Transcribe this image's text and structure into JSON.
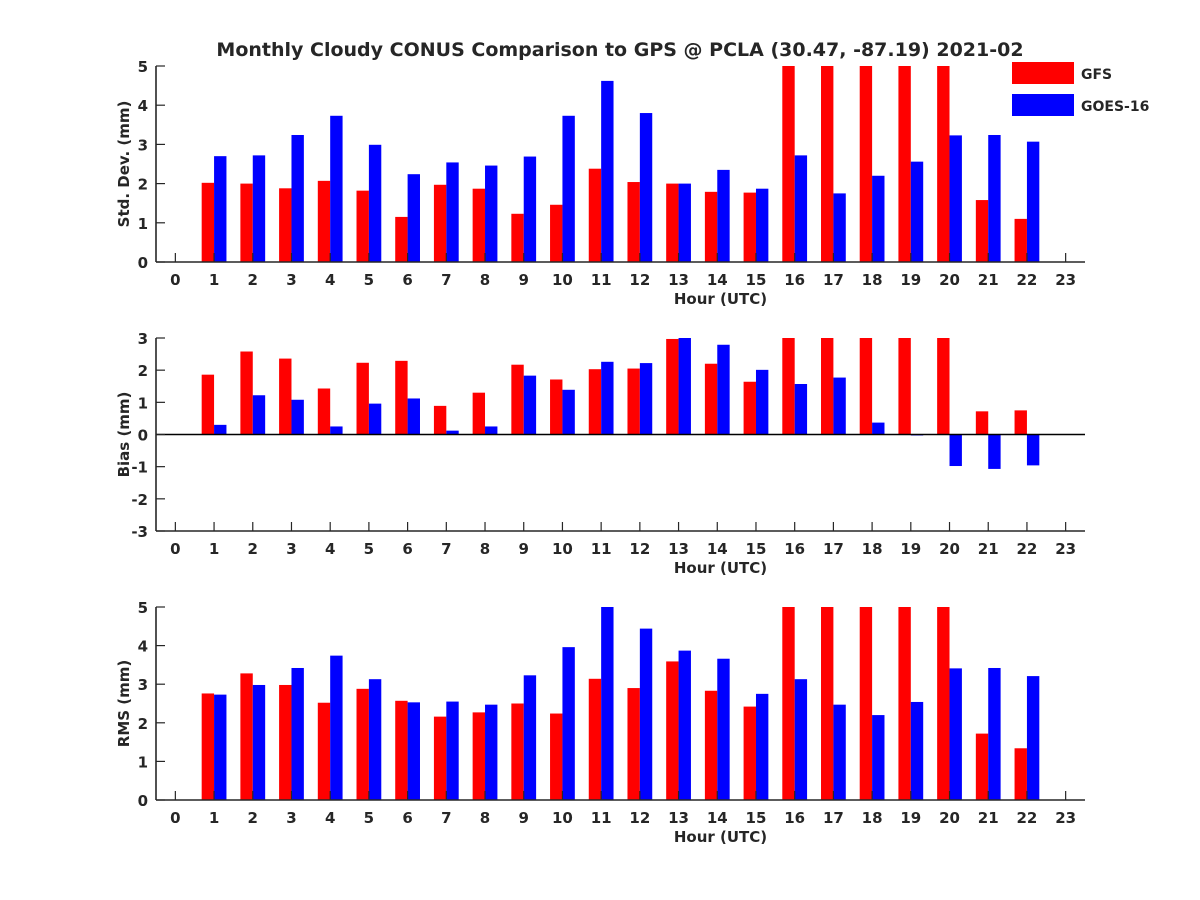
{
  "title": "Monthly Cloudy CONUS Comparison to GPS @ PCLA (30.47, -87.19) 2021-02",
  "legend": {
    "placement": "top-right",
    "entries": [
      {
        "label": "GFS",
        "color": "#ff0000"
      },
      {
        "label": "GOES-16",
        "color": "#0000ff"
      }
    ]
  },
  "chart_data": [
    {
      "type": "bar",
      "title": "Monthly Cloudy CONUS Comparison to GPS @ PCLA (30.47, -87.19) 2021-02",
      "xlabel": "Hour (UTC)",
      "ylabel": "Std. Dev. (mm)",
      "xlim": [
        -0.5,
        23.5
      ],
      "ylim": [
        0,
        5
      ],
      "yticks": [
        "0",
        "1",
        "2",
        "3",
        "4",
        "5"
      ],
      "categories": [
        "0",
        "1",
        "2",
        "3",
        "4",
        "5",
        "6",
        "7",
        "8",
        "9",
        "10",
        "11",
        "12",
        "13",
        "14",
        "15",
        "16",
        "17",
        "18",
        "19",
        "20",
        "21",
        "22",
        "23"
      ],
      "series": [
        {
          "name": "GFS",
          "color": "#ff0000",
          "values": [
            null,
            2.02,
            2.0,
            1.88,
            2.07,
            1.82,
            1.15,
            1.97,
            1.87,
            1.23,
            1.46,
            2.38,
            2.04,
            2.0,
            1.79,
            1.77,
            5,
            5,
            5,
            5,
            5,
            1.58,
            1.1,
            null
          ]
        },
        {
          "name": "GOES-16",
          "color": "#0000ff",
          "values": [
            null,
            2.7,
            2.72,
            3.24,
            3.73,
            2.99,
            2.24,
            2.54,
            2.46,
            2.69,
            3.73,
            4.62,
            3.8,
            2.0,
            2.35,
            1.87,
            2.72,
            1.75,
            2.2,
            2.56,
            3.23,
            3.24,
            3.07,
            null
          ]
        }
      ]
    },
    {
      "type": "bar",
      "xlabel": "Hour (UTC)",
      "ylabel": "Bias (mm)",
      "xlim": [
        -0.5,
        23.5
      ],
      "ylim": [
        -3,
        3
      ],
      "yticks": [
        "-3",
        "-2",
        "-1",
        "0",
        "1",
        "2",
        "3"
      ],
      "zero_line": true,
      "categories": [
        "0",
        "1",
        "2",
        "3",
        "4",
        "5",
        "6",
        "7",
        "8",
        "9",
        "10",
        "11",
        "12",
        "13",
        "14",
        "15",
        "16",
        "17",
        "18",
        "19",
        "20",
        "21",
        "22",
        "23"
      ],
      "series": [
        {
          "name": "GFS",
          "color": "#ff0000",
          "values": [
            null,
            1.86,
            2.58,
            2.36,
            1.43,
            2.23,
            2.29,
            0.89,
            1.3,
            2.17,
            1.71,
            2.03,
            2.05,
            2.97,
            2.2,
            1.64,
            3,
            3,
            3,
            3,
            3,
            0.72,
            0.75,
            null
          ]
        },
        {
          "name": "GOES-16",
          "color": "#0000ff",
          "values": [
            null,
            0.3,
            1.22,
            1.08,
            0.25,
            0.96,
            1.12,
            0.12,
            0.25,
            1.83,
            1.39,
            2.26,
            2.22,
            3.0,
            2.79,
            2.01,
            1.57,
            1.77,
            0.37,
            -0.03,
            -0.98,
            -1.07,
            -0.96,
            null
          ]
        }
      ]
    },
    {
      "type": "bar",
      "xlabel": "Hour (UTC)",
      "ylabel": "RMS (mm)",
      "xlim": [
        -0.5,
        23.5
      ],
      "ylim": [
        0,
        5
      ],
      "yticks": [
        "0",
        "1",
        "2",
        "3",
        "4",
        "5"
      ],
      "categories": [
        "0",
        "1",
        "2",
        "3",
        "4",
        "5",
        "6",
        "7",
        "8",
        "9",
        "10",
        "11",
        "12",
        "13",
        "14",
        "15",
        "16",
        "17",
        "18",
        "19",
        "20",
        "21",
        "22",
        "23"
      ],
      "series": [
        {
          "name": "GFS",
          "color": "#ff0000",
          "values": [
            null,
            2.76,
            3.28,
            2.98,
            2.52,
            2.88,
            2.57,
            2.16,
            2.27,
            2.5,
            2.24,
            3.14,
            2.9,
            3.59,
            2.83,
            2.42,
            5,
            5,
            5,
            5,
            5,
            1.72,
            1.34,
            null
          ]
        },
        {
          "name": "GOES-16",
          "color": "#0000ff",
          "values": [
            null,
            2.73,
            2.98,
            3.42,
            3.74,
            3.13,
            2.53,
            2.55,
            2.47,
            3.23,
            3.96,
            5.0,
            4.44,
            3.87,
            3.66,
            2.75,
            3.13,
            2.47,
            2.2,
            2.54,
            3.41,
            3.42,
            3.21,
            null
          ]
        }
      ]
    }
  ]
}
